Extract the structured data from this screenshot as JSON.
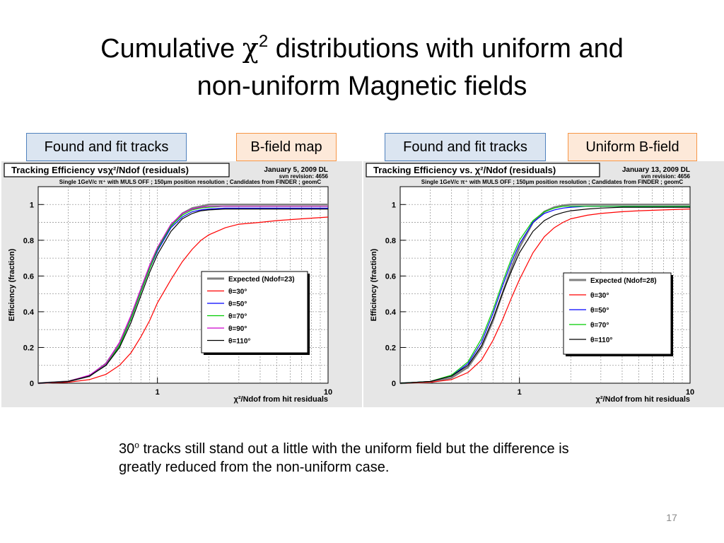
{
  "slide": {
    "title_line1_pre": "Cumulative ",
    "chi_symbol": "χ",
    "title_sup": "2",
    "title_line1_post": " distributions with uniform and",
    "title_line2": "non-uniform Magnetic fields",
    "caption_pre": "30",
    "caption_sup": "o",
    "caption_post": " tracks still stand out a little with the uniform field but the difference is greatly reduced from the non-uniform case.",
    "page_number": "17"
  },
  "labels": {
    "left_blue": "Found and fit tracks",
    "left_orange": "B-field map",
    "right_blue": "Found and fit tracks",
    "right_orange": "Uniform B-field"
  },
  "colors": {
    "expected": "#808080",
    "theta30": "#ff0000",
    "theta50": "#0000ff",
    "theta70": "#00cc00",
    "theta90": "#cc00cc",
    "theta110": "#000000",
    "label_blue_fill": "#dbe5f1",
    "label_orange_fill": "#fde9d9"
  },
  "chart_data": [
    {
      "type": "line",
      "title": "Tracking Efficiency vsχ²/Ndof (residuals)",
      "date": "January 5, 2009 DL",
      "revision": "svn revision: 4656",
      "subtitle": "Single 1GeV/c π⁺ with MULS OFF ; 150μm position resolution ; Candidates from FINDER ; geomC",
      "xlabel": "χ²/Ndof from hit residuals",
      "ylabel": "Efficiency (fraction)",
      "x_scale": "log",
      "xlim": [
        0.2,
        10
      ],
      "ylim": [
        0,
        1.1
      ],
      "x_ticks": [
        "1",
        "10"
      ],
      "y_ticks": [
        "0",
        "0.2",
        "0.4",
        "0.6",
        "0.8",
        "1"
      ],
      "grid": true,
      "legend_placement": "center-right",
      "x": [
        0.2,
        0.3,
        0.4,
        0.5,
        0.6,
        0.7,
        0.8,
        0.9,
        1.0,
        1.2,
        1.4,
        1.6,
        1.8,
        2.0,
        2.5,
        3,
        4,
        5,
        7,
        10
      ],
      "series": [
        {
          "name": "Expected (Ndof=23)",
          "color_key": "expected",
          "values": [
            0,
            0.01,
            0.04,
            0.11,
            0.22,
            0.37,
            0.52,
            0.65,
            0.75,
            0.88,
            0.95,
            0.98,
            0.99,
            1.0,
            1.0,
            1.0,
            1.0,
            1.0,
            1.0,
            1.0
          ]
        },
        {
          "name": "θ=30°",
          "color_key": "theta30",
          "values": [
            0,
            0.005,
            0.02,
            0.05,
            0.1,
            0.17,
            0.26,
            0.35,
            0.45,
            0.58,
            0.68,
            0.75,
            0.8,
            0.83,
            0.87,
            0.89,
            0.9,
            0.91,
            0.92,
            0.93
          ]
        },
        {
          "name": "θ=50°",
          "color_key": "theta50",
          "values": [
            0,
            0.01,
            0.04,
            0.1,
            0.21,
            0.36,
            0.51,
            0.64,
            0.74,
            0.87,
            0.93,
            0.96,
            0.97,
            0.975,
            0.98,
            0.98,
            0.98,
            0.98,
            0.98,
            0.98
          ]
        },
        {
          "name": "θ=70°",
          "color_key": "theta70",
          "values": [
            0,
            0.01,
            0.04,
            0.1,
            0.21,
            0.36,
            0.51,
            0.64,
            0.75,
            0.88,
            0.94,
            0.97,
            0.98,
            0.985,
            0.99,
            0.99,
            0.99,
            0.99,
            0.99,
            0.99
          ]
        },
        {
          "name": "θ=90°",
          "color_key": "theta90",
          "values": [
            0,
            0.01,
            0.045,
            0.11,
            0.23,
            0.38,
            0.53,
            0.66,
            0.76,
            0.89,
            0.95,
            0.975,
            0.985,
            0.99,
            0.99,
            0.99,
            0.99,
            0.99,
            0.99,
            0.99
          ]
        },
        {
          "name": "θ=110°",
          "color_key": "theta110",
          "values": [
            0,
            0.01,
            0.04,
            0.1,
            0.2,
            0.34,
            0.49,
            0.62,
            0.72,
            0.85,
            0.92,
            0.95,
            0.965,
            0.97,
            0.975,
            0.975,
            0.975,
            0.975,
            0.975,
            0.975
          ]
        }
      ]
    },
    {
      "type": "line",
      "title": "Tracking Efficiency vs. χ²/Ndof (residuals)",
      "date": "January 13, 2009 DL",
      "revision": "svn revision: 4656",
      "subtitle": "Single 1GeV/c π⁺ with MULS OFF ; 150μm position resolution ; Candidates from FINDER ; geomC",
      "xlabel": "χ²/Ndof from hit residuals",
      "ylabel": "Efficiency (fraction)",
      "x_scale": "log",
      "xlim": [
        0.2,
        10
      ],
      "ylim": [
        0,
        1.1
      ],
      "x_ticks": [
        "1",
        "10"
      ],
      "y_ticks": [
        "0",
        "0.2",
        "0.4",
        "0.6",
        "0.8",
        "1"
      ],
      "grid": true,
      "legend_placement": "center-right",
      "x": [
        0.2,
        0.3,
        0.4,
        0.5,
        0.6,
        0.7,
        0.8,
        0.9,
        1.0,
        1.2,
        1.4,
        1.6,
        1.8,
        2.0,
        2.5,
        3,
        4,
        5,
        7,
        10
      ],
      "series": [
        {
          "name": "Expected (Ndof=28)",
          "color_key": "expected",
          "values": [
            0,
            0.005,
            0.03,
            0.09,
            0.2,
            0.35,
            0.51,
            0.65,
            0.76,
            0.9,
            0.96,
            0.985,
            0.995,
            1.0,
            1.0,
            1.0,
            1.0,
            1.0,
            1.0,
            1.0
          ]
        },
        {
          "name": "θ=30°",
          "color_key": "theta30",
          "values": [
            0,
            0.005,
            0.02,
            0.06,
            0.13,
            0.24,
            0.36,
            0.48,
            0.58,
            0.73,
            0.82,
            0.87,
            0.9,
            0.92,
            0.94,
            0.95,
            0.96,
            0.965,
            0.97,
            0.975
          ]
        },
        {
          "name": "θ=50°",
          "color_key": "theta50",
          "values": [
            0,
            0.01,
            0.04,
            0.11,
            0.23,
            0.39,
            0.55,
            0.68,
            0.78,
            0.9,
            0.95,
            0.97,
            0.98,
            0.985,
            0.99,
            0.99,
            0.99,
            0.99,
            0.99,
            0.99
          ]
        },
        {
          "name": "θ=70°",
          "color_key": "theta70",
          "values": [
            0,
            0.01,
            0.045,
            0.12,
            0.25,
            0.41,
            0.57,
            0.7,
            0.8,
            0.91,
            0.96,
            0.98,
            0.99,
            0.99,
            0.99,
            0.99,
            0.99,
            0.99,
            0.99,
            0.99
          ]
        },
        {
          "name": "θ=110°",
          "color_key": "theta110",
          "values": [
            0,
            0.01,
            0.04,
            0.1,
            0.21,
            0.36,
            0.51,
            0.63,
            0.73,
            0.85,
            0.91,
            0.94,
            0.955,
            0.965,
            0.975,
            0.98,
            0.985,
            0.985,
            0.985,
            0.985
          ]
        }
      ]
    }
  ]
}
